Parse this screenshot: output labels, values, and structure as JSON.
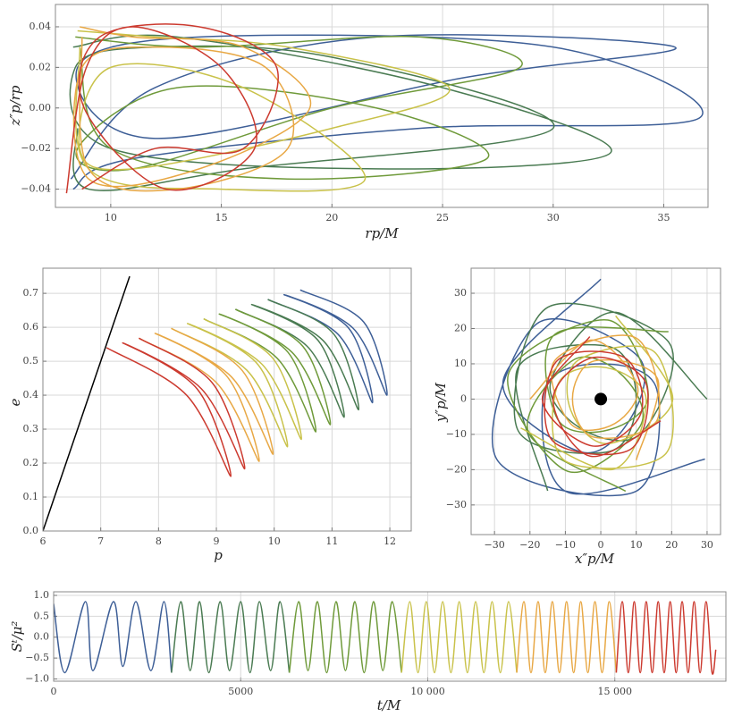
{
  "chart_data": [
    {
      "type": "line",
      "x_label": "rp/M",
      "y_label": "z″p/rp",
      "xlim": [
        7.5,
        37
      ],
      "ylim": [
        -0.049,
        0.051
      ],
      "xticks": [
        10,
        15,
        20,
        25,
        30,
        35
      ],
      "yticks": [
        {
          "value": -0.04,
          "label": "−0.04"
        },
        {
          "value": -0.02,
          "label": "−0.02"
        },
        {
          "value": 0,
          "label": "0.00"
        },
        0.02,
        0.04
      ],
      "grid": true,
      "series": [
        {
          "color": "#3e5f97",
          "x": [
            8.2,
            12,
            22,
            35.5,
            26,
            12,
            8.5,
            14,
            30,
            36.6,
            24,
            11,
            8.3
          ],
          "values": [
            -0.035,
            0.01,
            0.035,
            0.03,
            0.015,
            -0.015,
            0.02,
            0.035,
            0.03,
            -0.005,
            -0.01,
            -0.025,
            -0.04
          ]
        },
        {
          "color": "#4a7b52",
          "x": [
            8.3,
            13,
            25,
            32.6,
            22,
            10,
            8.4,
            12,
            20,
            30,
            16,
            9,
            8.5
          ],
          "values": [
            0.03,
            0.035,
            0.01,
            -0.022,
            -0.03,
            -0.02,
            0.02,
            0.03,
            0.025,
            -0.01,
            -0.03,
            -0.04,
            -0.01
          ]
        },
        {
          "color": "#6f9a3a",
          "x": [
            8.4,
            14,
            24,
            28.5,
            20,
            11,
            8.5,
            13,
            22,
            27,
            18,
            10,
            8.6
          ],
          "values": [
            0.035,
            0.03,
            0.035,
            0.02,
            0,
            -0.03,
            -0.02,
            0.01,
            0,
            -0.025,
            -0.035,
            -0.02,
            0.03
          ]
        },
        {
          "color": "#c9c24a",
          "x": [
            8.5,
            12,
            18,
            25.3,
            20,
            11,
            8.6,
            10,
            16,
            21.5,
            15,
            9,
            8.6
          ],
          "values": [
            0.038,
            0.035,
            0.03,
            0.01,
            -0.01,
            -0.03,
            -0.02,
            0.02,
            0.01,
            -0.035,
            -0.04,
            -0.03,
            0.03
          ]
        },
        {
          "color": "#e8a845",
          "x": [
            8.6,
            11,
            16,
            19,
            14,
            9,
            8.7,
            12,
            17,
            18,
            13,
            9,
            8.7
          ],
          "values": [
            0.04,
            0.035,
            0.03,
            0,
            -0.03,
            -0.035,
            0.02,
            0.03,
            0.02,
            -0.02,
            -0.04,
            -0.03,
            0.035
          ]
        },
        {
          "color": "#cc3a2f",
          "x": [
            8.7,
            12,
            16,
            17.5,
            14,
            9.5,
            8.8,
            12.5,
            16.5,
            15,
            11,
            8.9,
            8
          ],
          "values": [
            -0.04,
            -0.02,
            -0.02,
            0.02,
            0.04,
            0.035,
            0,
            -0.04,
            -0.02,
            0.02,
            0.04,
            0.02,
            -0.042
          ]
        }
      ]
    },
    {
      "type": "line",
      "x_label": "p",
      "y_label": "e",
      "xlim": [
        6,
        12.37
      ],
      "ylim": [
        0,
        0.774
      ],
      "xticks": [
        6,
        7,
        8,
        9,
        10,
        11,
        12
      ],
      "yticks": [
        {
          "value": 0,
          "label": "0.0"
        },
        0.1,
        0.2,
        0.3,
        0.4,
        0.5,
        0.6,
        0.7
      ],
      "grid": true,
      "series": [
        {
          "color": "#000000",
          "x": [
            6,
            7.5
          ],
          "values": [
            0,
            0.75
          ]
        },
        {
          "color": "#3e5f97",
          "x": [
            10.45,
            11.55,
            11.95,
            11.36,
            10.17,
            11.29,
            11.7,
            11.1,
            9.89
          ],
          "values": [
            0.71,
            0.615,
            0.4,
            0.598,
            0.696,
            0.597,
            0.378,
            0.58,
            0.682
          ]
        },
        {
          "color": "#4a7b52",
          "x": [
            9.89,
            11.03,
            11.46,
            10.84,
            9.61,
            10.76,
            11.21,
            10.57,
            9.33
          ],
          "values": [
            0.682,
            0.58,
            0.357,
            0.562,
            0.667,
            0.561,
            0.335,
            0.544,
            0.653
          ]
        },
        {
          "color": "#6f9a3a",
          "x": [
            9.33,
            10.5,
            10.97,
            10.31,
            9.05,
            10.24,
            10.72,
            10.05,
            8.78
          ],
          "values": [
            0.653,
            0.543,
            0.313,
            0.526,
            0.639,
            0.526,
            0.292,
            0.509,
            0.625
          ]
        },
        {
          "color": "#c9c24a",
          "x": [
            8.78,
            9.98,
            10.47,
            9.79,
            8.5,
            9.72,
            10.23,
            9.53,
            8.22
          ],
          "values": [
            0.625,
            0.508,
            0.27,
            0.491,
            0.611,
            0.49,
            0.248,
            0.473,
            0.597
          ]
        },
        {
          "color": "#e8a845",
          "x": [
            8.22,
            9.45,
            9.98,
            9.26,
            7.94,
            9.19,
            9.74,
            9,
            7.66
          ],
          "values": [
            0.597,
            0.472,
            0.226,
            0.454,
            0.582,
            0.454,
            0.205,
            0.437,
            0.568
          ]
        },
        {
          "color": "#cc3a2f",
          "x": [
            7.66,
            8.93,
            9.49,
            8.74,
            7.38,
            8.67,
            9.25,
            8.48,
            7.1
          ],
          "values": [
            0.568,
            0.436,
            0.183,
            0.419,
            0.554,
            0.418,
            0.161,
            0.401,
            0.54
          ]
        }
      ]
    },
    {
      "type": "line",
      "x_label": "x″p/M",
      "y_label": "y″p/M",
      "xlim": [
        -36.6,
        33.8
      ],
      "ylim": [
        -38.4,
        37.1
      ],
      "xticks": [
        {
          "value": -30,
          "label": "−30"
        },
        {
          "value": -20,
          "label": "−20"
        },
        {
          "value": -10,
          "label": "−10"
        },
        0,
        10,
        20,
        30
      ],
      "yticks": [
        {
          "value": -30,
          "label": "−30"
        },
        {
          "value": -20,
          "label": "−20"
        },
        {
          "value": -10,
          "label": "−10"
        },
        0,
        10,
        20,
        30
      ],
      "grid": true,
      "series": [
        {
          "color": "#3e5f97",
          "x": [
            0,
            -27.6,
            -5.5,
            8.7,
            10.3,
            -18,
            -29.4,
            9.6,
            15.8,
            0,
            -15.8,
            -9.6,
            29.4
          ],
          "values": [
            34,
            4.9,
            -15,
            -5,
            12.3,
            21.4,
            -17,
            -26.3,
            2.8,
            10,
            2.8,
            -26.3,
            -17
          ]
        },
        {
          "color": "#4a7b52",
          "x": [
            30,
            4.3,
            -14.1,
            -5,
            11.5,
            19.2,
            -15,
            -23.5,
            2.6,
            10,
            2.6,
            -23.5,
            -15
          ],
          "values": [
            0,
            24.6,
            5.1,
            -8.7,
            -9.6,
            16.1,
            26,
            -8.6,
            -14.8,
            0,
            14.8,
            8.6,
            -26
          ]
        },
        {
          "color": "#6f9a3a",
          "x": [
            19.1,
            -12.9,
            -12.2,
            2.3,
            13.4,
            2,
            -26.1,
            -9.5,
            11.1,
            6.4,
            -7.7,
            -20.4,
            7
          ],
          "values": [
            19.1,
            18.4,
            -5.7,
            -8.7,
            1.2,
            22.4,
            7,
            -20.4,
            -7.7,
            6.4,
            11.1,
            -9.5,
            -26.1
          ]
        },
        {
          "color": "#c9c24a",
          "x": [
            -22.6,
            3.5,
            12.8,
            1.6,
            -12,
            -10.1,
            18.4,
            15.5,
            -6.4,
            -8.5,
            2.2,
            20.3,
            4.2
          ],
          "values": [
            -8.2,
            -19.9,
            0,
            8.9,
            4.4,
            -17.5,
            -15.4,
            13,
            11,
            -3.1,
            -12.6,
            0,
            23.6
          ]
        },
        {
          "color": "#e8a845",
          "x": [
            10,
            16,
            -1.9,
            -8,
            -1.9,
            16,
            10,
            -13,
            -8.4,
            4,
            10.3,
            -3,
            -20
          ],
          "values": [
            -17.3,
            5.8,
            10.8,
            0,
            -10.8,
            -5.8,
            17.3,
            10.9,
            -7.1,
            -6.9,
            3.8,
            16.7,
            0
          ]
        },
        {
          "color": "#cc3a2f",
          "x": [
            -3.1,
            -16.5,
            -2.3,
            11.3,
            6.8,
            -12.6,
            -13.8,
            8.3,
            12.7,
            -2.1,
            -13.5,
            -2.9,
            16.9
          ],
          "values": [
            17.7,
            0,
            -13.3,
            -4.1,
            11.7,
            10.6,
            -11.6,
            -14.3,
            4.6,
            11.8,
            0,
            -16.2,
            -6.2
          ]
        }
      ]
    },
    {
      "type": "line",
      "x_label": "t/M",
      "y_label": "Sᵗ/μ²",
      "xlim": [
        0,
        17970
      ],
      "ylim": [
        -1.054,
        1.086
      ],
      "xticks": [
        0,
        5000,
        {
          "value": 10000,
          "label": "10 000"
        },
        {
          "value": 15000,
          "label": "15 000"
        }
      ],
      "yticks": [
        {
          "value": -1,
          "label": "−1.0"
        },
        {
          "value": -0.5,
          "label": "−0.5"
        },
        {
          "value": 0,
          "label": "0.0"
        },
        0.5,
        {
          "value": 1,
          "label": "1.0"
        }
      ],
      "grid": true,
      "series": [
        {
          "color": "#3e5f97",
          "x": [
            0,
            300,
            850,
            1050,
            1600,
            1850,
            2200,
            2600,
            2950,
            3150
          ],
          "values": [
            0.8,
            -0.85,
            0.85,
            -0.8,
            0.85,
            -0.7,
            0.85,
            -0.8,
            0.85,
            -0.85
          ]
        },
        {
          "color": "#4a7b52",
          "x": [
            3150,
            3400,
            3650,
            3900,
            4150,
            4450,
            4700,
            5000,
            5250,
            5500,
            5800,
            6050,
            6300
          ],
          "values": [
            -0.85,
            0.85,
            -0.8,
            0.85,
            -0.85,
            0.85,
            -0.8,
            0.85,
            -0.85,
            0.85,
            -0.8,
            0.85,
            -0.85
          ]
        },
        {
          "color": "#6f9a3a",
          "x": [
            6300,
            6550,
            6800,
            7050,
            7300,
            7550,
            7800,
            8050,
            8300,
            8550,
            8800,
            9050,
            9300
          ],
          "values": [
            -0.85,
            0.85,
            -0.8,
            0.85,
            -0.85,
            0.85,
            -0.8,
            0.85,
            -0.85,
            0.85,
            -0.8,
            0.85,
            -0.85
          ]
        },
        {
          "color": "#c9c24a",
          "x": [
            9300,
            9520,
            9740,
            9960,
            10180,
            10400,
            10620,
            10840,
            11060,
            11280,
            11500,
            11720,
            11940,
            12160,
            12380
          ],
          "values": [
            -0.85,
            0.85,
            -0.85,
            0.85,
            -0.85,
            0.85,
            -0.85,
            0.85,
            -0.85,
            0.85,
            -0.85,
            0.85,
            -0.85,
            0.85,
            -0.85
          ]
        },
        {
          "color": "#e8a845",
          "x": [
            12380,
            12570,
            12760,
            12950,
            13140,
            13330,
            13520,
            13710,
            13900,
            14090,
            14280,
            14470,
            14660,
            14850,
            15040
          ],
          "values": [
            -0.85,
            0.85,
            -0.85,
            0.85,
            -0.85,
            0.85,
            -0.85,
            0.85,
            -0.85,
            0.85,
            -0.85,
            0.85,
            -0.85,
            0.85,
            -0.85
          ]
        },
        {
          "color": "#cc3a2f",
          "x": [
            15040,
            15200,
            15360,
            15520,
            15680,
            15840,
            16000,
            16160,
            16320,
            16480,
            16640,
            16800,
            16960,
            17120,
            17280,
            17440,
            17600,
            17700
          ],
          "values": [
            -0.85,
            0.85,
            -0.85,
            0.85,
            -0.85,
            0.85,
            -0.85,
            0.85,
            -0.85,
            0.85,
            -0.85,
            0.85,
            -0.85,
            0.85,
            -0.85,
            0.85,
            -0.85,
            -0.3
          ]
        }
      ]
    }
  ]
}
